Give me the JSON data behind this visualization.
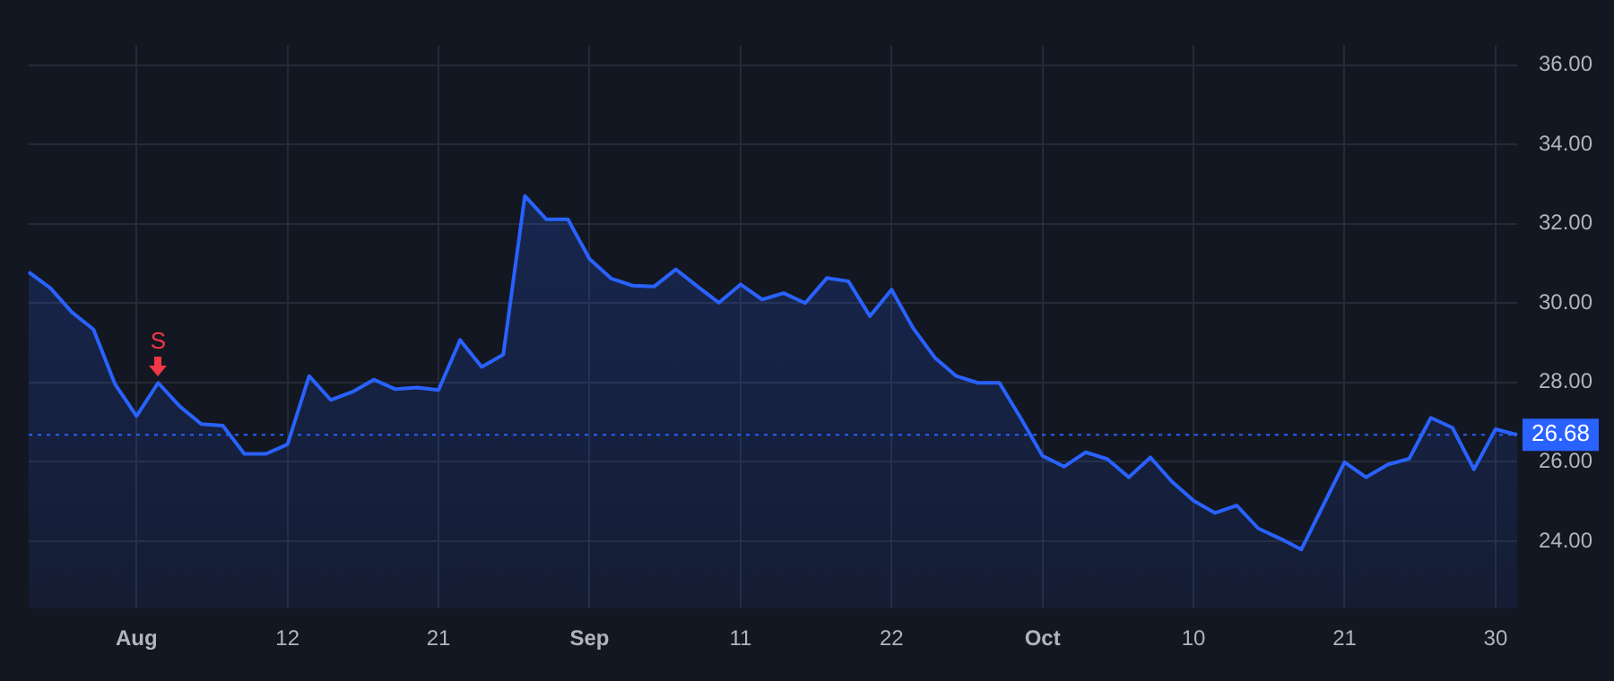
{
  "chart_data": {
    "type": "area",
    "categories": [
      null,
      null,
      null,
      null,
      null,
      "Aug",
      null,
      null,
      null,
      null,
      null,
      null,
      "12",
      null,
      null,
      null,
      null,
      null,
      null,
      "21",
      null,
      null,
      null,
      null,
      null,
      null,
      "Sep",
      null,
      null,
      null,
      null,
      null,
      null,
      "11",
      null,
      null,
      null,
      null,
      null,
      null,
      "22",
      null,
      null,
      null,
      null,
      null,
      null,
      "Oct",
      null,
      null,
      null,
      null,
      null,
      null,
      "10",
      null,
      null,
      null,
      null,
      null,
      null,
      "21",
      null,
      null,
      null,
      null,
      null,
      null,
      "30",
      null
    ],
    "series": [
      {
        "color": "#2962ff",
        "values": [
          30.78,
          30.38,
          29.77,
          29.34,
          27.96,
          27.15,
          27.99,
          27.4,
          26.95,
          26.91,
          26.2,
          26.2,
          26.44,
          28.16,
          27.56,
          27.76,
          28.07,
          27.83,
          27.87,
          27.81,
          29.07,
          28.39,
          28.7,
          32.7,
          32.11,
          32.11,
          31.11,
          30.62,
          30.44,
          30.42,
          30.85,
          30.42,
          30.01,
          30.47,
          30.09,
          30.25,
          30.0,
          30.63,
          30.55,
          29.67,
          30.34,
          29.37,
          28.63,
          28.16,
          27.99,
          27.99,
          27.09,
          26.15,
          25.88,
          26.24,
          26.07,
          25.61,
          26.11,
          25.5,
          25.02,
          24.71,
          24.9,
          24.32,
          24.07,
          23.79,
          24.89,
          25.99,
          25.61,
          25.93,
          26.08,
          27.11,
          26.86,
          25.81,
          26.82,
          26.68
        ]
      }
    ],
    "ylim": [
      22.3,
      36.5
    ],
    "yticks": [
      {
        "value": 24,
        "label": "24.00"
      },
      {
        "value": 26,
        "label": "26.00"
      },
      {
        "value": 28,
        "label": "28.00"
      },
      {
        "value": 30,
        "label": "30.00"
      },
      {
        "value": 32,
        "label": "32.00"
      },
      {
        "value": 34,
        "label": "34.00"
      },
      {
        "value": 36,
        "label": "36.00"
      }
    ],
    "grid": true,
    "legend": false,
    "marker": "none",
    "line_style": "solid",
    "ref_lines": [
      {
        "axis": "y",
        "value": 26.68,
        "label": "26.68",
        "color": "#2962ff",
        "line_style": "dotted"
      }
    ],
    "annotations": [
      {
        "text": "S",
        "y": 27.99
      }
    ]
  }
}
